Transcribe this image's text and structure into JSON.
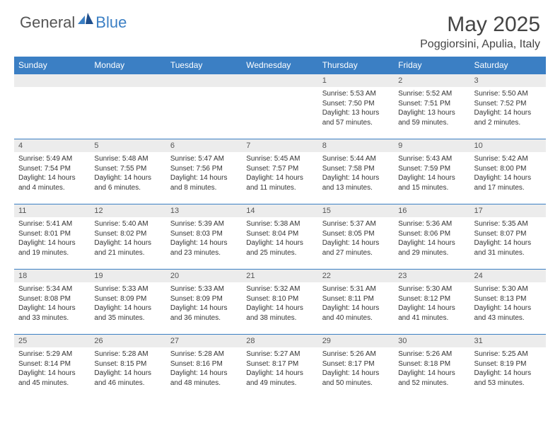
{
  "logo": {
    "general": "General",
    "blue": "Blue"
  },
  "title": "May 2025",
  "location": "Poggiorsini, Apulia, Italy",
  "weekday_header_bg": "#3b7fc4",
  "weekday_header_fg": "#ffffff",
  "daynum_bg": "#ececec",
  "border_color": "#3b7fc4",
  "weekdays": [
    "Sunday",
    "Monday",
    "Tuesday",
    "Wednesday",
    "Thursday",
    "Friday",
    "Saturday"
  ],
  "weeks": [
    [
      {
        "n": "",
        "sunrise": "",
        "sunset": "",
        "daylight": ""
      },
      {
        "n": "",
        "sunrise": "",
        "sunset": "",
        "daylight": ""
      },
      {
        "n": "",
        "sunrise": "",
        "sunset": "",
        "daylight": ""
      },
      {
        "n": "",
        "sunrise": "",
        "sunset": "",
        "daylight": ""
      },
      {
        "n": "1",
        "sunrise": "Sunrise: 5:53 AM",
        "sunset": "Sunset: 7:50 PM",
        "daylight": "Daylight: 13 hours and 57 minutes."
      },
      {
        "n": "2",
        "sunrise": "Sunrise: 5:52 AM",
        "sunset": "Sunset: 7:51 PM",
        "daylight": "Daylight: 13 hours and 59 minutes."
      },
      {
        "n": "3",
        "sunrise": "Sunrise: 5:50 AM",
        "sunset": "Sunset: 7:52 PM",
        "daylight": "Daylight: 14 hours and 2 minutes."
      }
    ],
    [
      {
        "n": "4",
        "sunrise": "Sunrise: 5:49 AM",
        "sunset": "Sunset: 7:54 PM",
        "daylight": "Daylight: 14 hours and 4 minutes."
      },
      {
        "n": "5",
        "sunrise": "Sunrise: 5:48 AM",
        "sunset": "Sunset: 7:55 PM",
        "daylight": "Daylight: 14 hours and 6 minutes."
      },
      {
        "n": "6",
        "sunrise": "Sunrise: 5:47 AM",
        "sunset": "Sunset: 7:56 PM",
        "daylight": "Daylight: 14 hours and 8 minutes."
      },
      {
        "n": "7",
        "sunrise": "Sunrise: 5:45 AM",
        "sunset": "Sunset: 7:57 PM",
        "daylight": "Daylight: 14 hours and 11 minutes."
      },
      {
        "n": "8",
        "sunrise": "Sunrise: 5:44 AM",
        "sunset": "Sunset: 7:58 PM",
        "daylight": "Daylight: 14 hours and 13 minutes."
      },
      {
        "n": "9",
        "sunrise": "Sunrise: 5:43 AM",
        "sunset": "Sunset: 7:59 PM",
        "daylight": "Daylight: 14 hours and 15 minutes."
      },
      {
        "n": "10",
        "sunrise": "Sunrise: 5:42 AM",
        "sunset": "Sunset: 8:00 PM",
        "daylight": "Daylight: 14 hours and 17 minutes."
      }
    ],
    [
      {
        "n": "11",
        "sunrise": "Sunrise: 5:41 AM",
        "sunset": "Sunset: 8:01 PM",
        "daylight": "Daylight: 14 hours and 19 minutes."
      },
      {
        "n": "12",
        "sunrise": "Sunrise: 5:40 AM",
        "sunset": "Sunset: 8:02 PM",
        "daylight": "Daylight: 14 hours and 21 minutes."
      },
      {
        "n": "13",
        "sunrise": "Sunrise: 5:39 AM",
        "sunset": "Sunset: 8:03 PM",
        "daylight": "Daylight: 14 hours and 23 minutes."
      },
      {
        "n": "14",
        "sunrise": "Sunrise: 5:38 AM",
        "sunset": "Sunset: 8:04 PM",
        "daylight": "Daylight: 14 hours and 25 minutes."
      },
      {
        "n": "15",
        "sunrise": "Sunrise: 5:37 AM",
        "sunset": "Sunset: 8:05 PM",
        "daylight": "Daylight: 14 hours and 27 minutes."
      },
      {
        "n": "16",
        "sunrise": "Sunrise: 5:36 AM",
        "sunset": "Sunset: 8:06 PM",
        "daylight": "Daylight: 14 hours and 29 minutes."
      },
      {
        "n": "17",
        "sunrise": "Sunrise: 5:35 AM",
        "sunset": "Sunset: 8:07 PM",
        "daylight": "Daylight: 14 hours and 31 minutes."
      }
    ],
    [
      {
        "n": "18",
        "sunrise": "Sunrise: 5:34 AM",
        "sunset": "Sunset: 8:08 PM",
        "daylight": "Daylight: 14 hours and 33 minutes."
      },
      {
        "n": "19",
        "sunrise": "Sunrise: 5:33 AM",
        "sunset": "Sunset: 8:09 PM",
        "daylight": "Daylight: 14 hours and 35 minutes."
      },
      {
        "n": "20",
        "sunrise": "Sunrise: 5:33 AM",
        "sunset": "Sunset: 8:09 PM",
        "daylight": "Daylight: 14 hours and 36 minutes."
      },
      {
        "n": "21",
        "sunrise": "Sunrise: 5:32 AM",
        "sunset": "Sunset: 8:10 PM",
        "daylight": "Daylight: 14 hours and 38 minutes."
      },
      {
        "n": "22",
        "sunrise": "Sunrise: 5:31 AM",
        "sunset": "Sunset: 8:11 PM",
        "daylight": "Daylight: 14 hours and 40 minutes."
      },
      {
        "n": "23",
        "sunrise": "Sunrise: 5:30 AM",
        "sunset": "Sunset: 8:12 PM",
        "daylight": "Daylight: 14 hours and 41 minutes."
      },
      {
        "n": "24",
        "sunrise": "Sunrise: 5:30 AM",
        "sunset": "Sunset: 8:13 PM",
        "daylight": "Daylight: 14 hours and 43 minutes."
      }
    ],
    [
      {
        "n": "25",
        "sunrise": "Sunrise: 5:29 AM",
        "sunset": "Sunset: 8:14 PM",
        "daylight": "Daylight: 14 hours and 45 minutes."
      },
      {
        "n": "26",
        "sunrise": "Sunrise: 5:28 AM",
        "sunset": "Sunset: 8:15 PM",
        "daylight": "Daylight: 14 hours and 46 minutes."
      },
      {
        "n": "27",
        "sunrise": "Sunrise: 5:28 AM",
        "sunset": "Sunset: 8:16 PM",
        "daylight": "Daylight: 14 hours and 48 minutes."
      },
      {
        "n": "28",
        "sunrise": "Sunrise: 5:27 AM",
        "sunset": "Sunset: 8:17 PM",
        "daylight": "Daylight: 14 hours and 49 minutes."
      },
      {
        "n": "29",
        "sunrise": "Sunrise: 5:26 AM",
        "sunset": "Sunset: 8:17 PM",
        "daylight": "Daylight: 14 hours and 50 minutes."
      },
      {
        "n": "30",
        "sunrise": "Sunrise: 5:26 AM",
        "sunset": "Sunset: 8:18 PM",
        "daylight": "Daylight: 14 hours and 52 minutes."
      },
      {
        "n": "31",
        "sunrise": "Sunrise: 5:25 AM",
        "sunset": "Sunset: 8:19 PM",
        "daylight": "Daylight: 14 hours and 53 minutes."
      }
    ]
  ]
}
